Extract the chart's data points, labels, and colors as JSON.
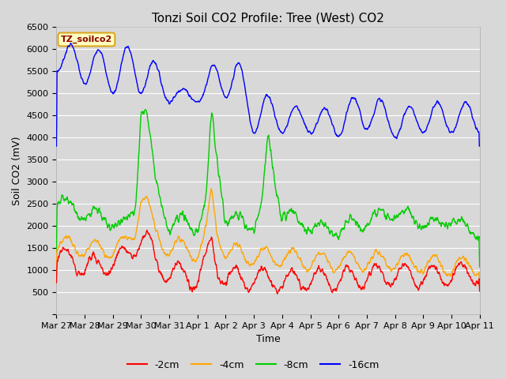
{
  "title": "Tonzi Soil CO2 Profile: Tree (West) CO2",
  "ylabel": "Soil CO2 (mV)",
  "xlabel": "Time",
  "watermark": "TZ_soilco2",
  "ylim": [
    0,
    6500
  ],
  "yticks": [
    0,
    500,
    1000,
    1500,
    2000,
    2500,
    3000,
    3500,
    4000,
    4500,
    5000,
    5500,
    6000,
    6500
  ],
  "colors": {
    "-2cm": "#FF0000",
    "-4cm": "#FFA500",
    "-8cm": "#00CC00",
    "-16cm": "#0000FF"
  },
  "legend_labels": [
    "-2cm",
    "-4cm",
    "-8cm",
    "-16cm"
  ],
  "title_fontsize": 11,
  "label_fontsize": 9,
  "tick_fontsize": 8,
  "day_labels": [
    "Mar 27",
    "Mar 28",
    "Mar 29",
    "Mar 30",
    "Mar 31",
    "Apr 1",
    "Apr 2",
    "Apr 3",
    "Apr 4",
    "Apr 5",
    "Apr 6",
    "Apr 7",
    "Apr 8",
    "Apr 9",
    "Apr 10",
    "Apr 11"
  ],
  "n_days": 15
}
